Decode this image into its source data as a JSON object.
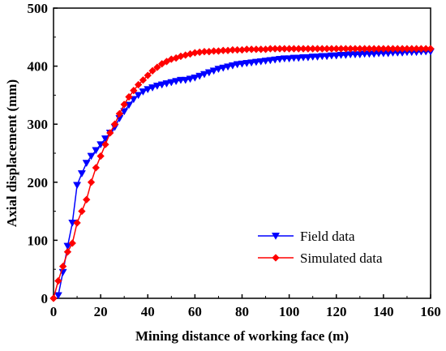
{
  "chart_data": {
    "type": "line",
    "title": "",
    "xlabel": "Mining distance of working face (m)",
    "ylabel": "Axial displacement (mm)",
    "xlim": [
      0,
      160
    ],
    "ylim": [
      0,
      500
    ],
    "xticks": [
      0,
      20,
      40,
      60,
      80,
      100,
      120,
      140,
      160
    ],
    "yticks": [
      0,
      100,
      200,
      300,
      400,
      500
    ],
    "grid": false,
    "legend_position": "bottom-right",
    "series": [
      {
        "name": "Field data",
        "color": "#0000ff",
        "marker": "triangle-down",
        "x": [
          2,
          4,
          6,
          8,
          10,
          12,
          14,
          16,
          18,
          20,
          22,
          24,
          26,
          28,
          30,
          32,
          34,
          36,
          38,
          40,
          42,
          44,
          46,
          48,
          50,
          52,
          54,
          56,
          58,
          60,
          62,
          64,
          66,
          68,
          70,
          72,
          74,
          76,
          78,
          80,
          82,
          84,
          86,
          88,
          90,
          92,
          94,
          96,
          98,
          100,
          102,
          104,
          106,
          108,
          110,
          112,
          114,
          116,
          118,
          120,
          122,
          124,
          126,
          128,
          130,
          132,
          134,
          136,
          138,
          140,
          142,
          144,
          146,
          148,
          150,
          152,
          154,
          156,
          158,
          160
        ],
        "y": [
          5,
          45,
          90,
          130,
          195,
          215,
          233,
          245,
          255,
          265,
          275,
          285,
          295,
          310,
          322,
          333,
          343,
          350,
          356,
          360,
          363,
          366,
          368,
          370,
          372,
          374,
          376,
          376,
          378,
          380,
          383,
          386,
          389,
          392,
          395,
          397,
          399,
          401,
          403,
          404,
          405,
          406,
          407,
          408,
          409,
          410,
          411,
          412,
          413,
          413,
          414,
          414,
          415,
          415,
          416,
          416,
          417,
          417,
          418,
          418,
          419,
          419,
          420,
          420,
          420,
          421,
          421,
          421,
          422,
          422,
          422,
          423,
          423,
          423,
          424,
          424,
          424,
          425,
          425,
          425
        ]
      },
      {
        "name": "Simulated data",
        "color": "#ff0000",
        "marker": "diamond",
        "x": [
          0,
          2,
          4,
          6,
          8,
          10,
          12,
          14,
          16,
          18,
          20,
          22,
          24,
          26,
          28,
          30,
          32,
          34,
          36,
          38,
          40,
          42,
          44,
          46,
          48,
          50,
          52,
          54,
          56,
          58,
          60,
          62,
          64,
          66,
          68,
          70,
          72,
          74,
          76,
          78,
          80,
          82,
          84,
          86,
          88,
          90,
          92,
          94,
          96,
          98,
          100,
          102,
          104,
          106,
          108,
          110,
          112,
          114,
          116,
          118,
          120,
          122,
          124,
          126,
          128,
          130,
          132,
          134,
          136,
          138,
          140,
          142,
          144,
          146,
          148,
          150,
          152,
          154,
          156,
          158,
          160
        ],
        "y": [
          0,
          30,
          55,
          80,
          95,
          130,
          150,
          170,
          200,
          225,
          245,
          265,
          285,
          300,
          318,
          334,
          347,
          358,
          368,
          376,
          384,
          392,
          398,
          404,
          408,
          412,
          414,
          417,
          419,
          421,
          423,
          424,
          425,
          425,
          426,
          426,
          427,
          427,
          428,
          428,
          428,
          429,
          429,
          429,
          429,
          429,
          430,
          430,
          430,
          430,
          430,
          430,
          430,
          430,
          430,
          430,
          430,
          430,
          430,
          430,
          430,
          430,
          430,
          430,
          430,
          430,
          430,
          430,
          430,
          430,
          430,
          430,
          430,
          430,
          430,
          430,
          430,
          430,
          430,
          430,
          430
        ]
      }
    ]
  }
}
